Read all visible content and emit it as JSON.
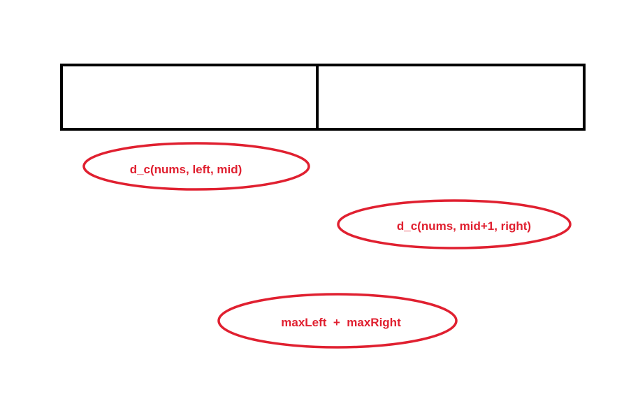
{
  "colors": {
    "background": "#ffffff",
    "array_stroke": "#000000",
    "annotation": "#e02030"
  },
  "array": {
    "segments": [
      "left-half",
      "right-half"
    ]
  },
  "annotations": {
    "left_call": "d_c(nums, left, mid)",
    "right_call": "d_c(nums, mid+1, right)",
    "combine": "maxLeft  +  maxRight"
  }
}
